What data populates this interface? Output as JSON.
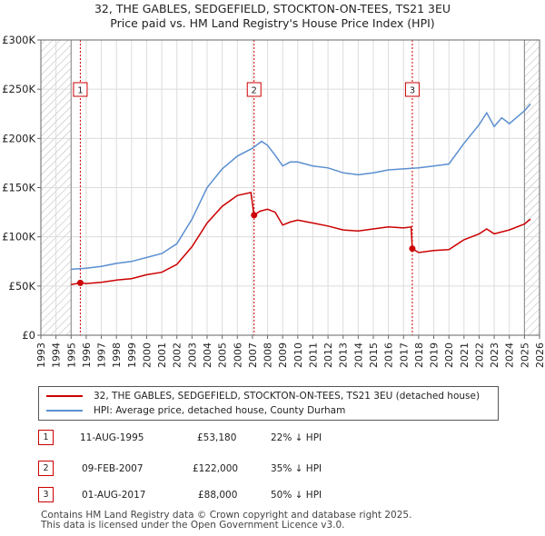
{
  "title": "32, THE GABLES, SEDGEFIELD, STOCKTON-ON-TEES, TS21 3EU",
  "subtitle": "Price paid vs. HM Land Registry's House Price Index (HPI)",
  "colors": {
    "property": "#cc0000",
    "hpi": "#5b8fd0",
    "grid": "#dcdcdc",
    "hatch": "#999999"
  },
  "chart_data": {
    "type": "line",
    "ylim": [
      0,
      300000
    ],
    "xlim": [
      1993,
      2026
    ],
    "y_ticks": [
      0,
      50000,
      100000,
      150000,
      200000,
      250000,
      300000
    ],
    "y_tick_labels": [
      "£0",
      "£50K",
      "£100K",
      "£150K",
      "£200K",
      "£250K",
      "£300K"
    ],
    "x_ticks": [
      1993,
      1994,
      1995,
      1996,
      1997,
      1998,
      1999,
      2000,
      2001,
      2002,
      2003,
      2004,
      2005,
      2006,
      2007,
      2008,
      2009,
      2010,
      2011,
      2012,
      2013,
      2014,
      2015,
      2016,
      2017,
      2018,
      2019,
      2020,
      2021,
      2022,
      2023,
      2024,
      2025,
      2026
    ],
    "hatched_before": 1995.0,
    "hatched_after": 2025.0,
    "series": [
      {
        "name": "32, THE GABLES, SEDGEFIELD, STOCKTON-ON-TEES, TS21 3EU (detached house)",
        "points": [
          [
            1995.0,
            51500
          ],
          [
            1995.61,
            53180
          ],
          [
            1996.0,
            52500
          ],
          [
            1997.0,
            53800
          ],
          [
            1998.0,
            56000
          ],
          [
            1999.0,
            57500
          ],
          [
            2000.0,
            61500
          ],
          [
            2001.0,
            64000
          ],
          [
            2002.0,
            72000
          ],
          [
            2003.0,
            90000
          ],
          [
            2004.0,
            114000
          ],
          [
            2005.0,
            131000
          ],
          [
            2006.0,
            142000
          ],
          [
            2006.9,
            145000
          ],
          [
            2007.11,
            122000
          ],
          [
            2007.5,
            126000
          ],
          [
            2008.0,
            128000
          ],
          [
            2008.5,
            125000
          ],
          [
            2009.0,
            112000
          ],
          [
            2009.5,
            115000
          ],
          [
            2010.0,
            117000
          ],
          [
            2011.0,
            114000
          ],
          [
            2012.0,
            111000
          ],
          [
            2013.0,
            107000
          ],
          [
            2014.0,
            106000
          ],
          [
            2015.0,
            108000
          ],
          [
            2016.0,
            110000
          ],
          [
            2017.0,
            109000
          ],
          [
            2017.5,
            110000
          ],
          [
            2017.58,
            88000
          ],
          [
            2018.0,
            84000
          ],
          [
            2019.0,
            86000
          ],
          [
            2020.0,
            87000
          ],
          [
            2021.0,
            97000
          ],
          [
            2022.0,
            103000
          ],
          [
            2022.5,
            108000
          ],
          [
            2023.0,
            103000
          ],
          [
            2024.0,
            107000
          ],
          [
            2025.0,
            113000
          ],
          [
            2025.4,
            118000
          ]
        ]
      },
      {
        "name": "HPI: Average price, detached house, County Durham",
        "points": [
          [
            1995.0,
            67000
          ],
          [
            1996.0,
            68000
          ],
          [
            1997.0,
            70000
          ],
          [
            1998.0,
            73000
          ],
          [
            1999.0,
            75000
          ],
          [
            2000.0,
            79000
          ],
          [
            2001.0,
            83000
          ],
          [
            2002.0,
            93000
          ],
          [
            2003.0,
            118000
          ],
          [
            2004.0,
            150000
          ],
          [
            2005.0,
            169000
          ],
          [
            2006.0,
            182000
          ],
          [
            2007.0,
            190000
          ],
          [
            2007.6,
            197000
          ],
          [
            2008.0,
            193000
          ],
          [
            2008.5,
            183000
          ],
          [
            2009.0,
            172000
          ],
          [
            2009.5,
            176000
          ],
          [
            2010.0,
            176000
          ],
          [
            2011.0,
            172000
          ],
          [
            2012.0,
            170000
          ],
          [
            2013.0,
            165000
          ],
          [
            2014.0,
            163000
          ],
          [
            2015.0,
            165000
          ],
          [
            2016.0,
            168000
          ],
          [
            2017.0,
            169000
          ],
          [
            2018.0,
            170000
          ],
          [
            2019.0,
            172000
          ],
          [
            2020.0,
            174000
          ],
          [
            2021.0,
            195000
          ],
          [
            2022.0,
            214000
          ],
          [
            2022.5,
            226000
          ],
          [
            2023.0,
            212000
          ],
          [
            2023.5,
            221000
          ],
          [
            2024.0,
            215000
          ],
          [
            2025.0,
            228000
          ],
          [
            2025.4,
            235000
          ]
        ]
      }
    ],
    "sales": [
      {
        "id": "1",
        "x": 1995.61,
        "y": 53180
      },
      {
        "id": "2",
        "x": 2007.11,
        "y": 122000
      },
      {
        "id": "3",
        "x": 2017.58,
        "y": 88000
      }
    ]
  },
  "legend": {
    "property": "32, THE GABLES, SEDGEFIELD, STOCKTON-ON-TEES, TS21 3EU (detached house)",
    "hpi": "HPI: Average price, detached house, County Durham"
  },
  "transactions": [
    {
      "id": "1",
      "date": "11-AUG-1995",
      "price": "£53,180",
      "hpi": "22% ↓ HPI"
    },
    {
      "id": "2",
      "date": "09-FEB-2007",
      "price": "£122,000",
      "hpi": "35% ↓ HPI"
    },
    {
      "id": "3",
      "date": "01-AUG-2017",
      "price": "£88,000",
      "hpi": "50% ↓ HPI"
    }
  ],
  "footer": {
    "line1": "Contains HM Land Registry data © Crown copyright and database right 2025.",
    "line2": "This data is licensed under the Open Government Licence v3.0."
  }
}
